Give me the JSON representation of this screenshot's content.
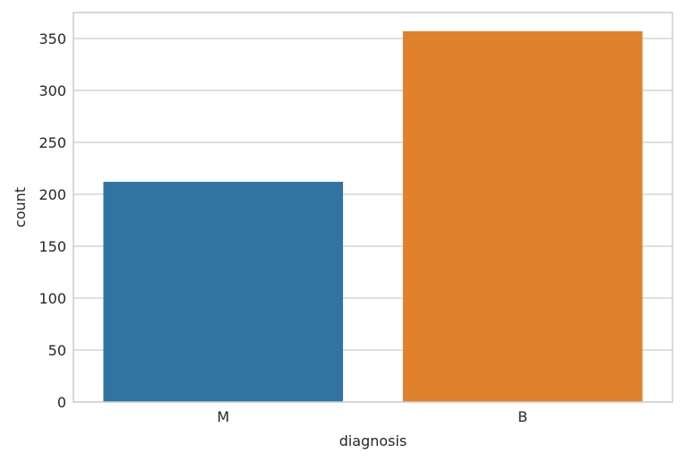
{
  "chart_data": {
    "type": "bar",
    "categories": [
      "M",
      "B"
    ],
    "values": [
      212,
      357
    ],
    "colors": [
      "#3274a1",
      "#e1812c"
    ],
    "xlabel": "diagnosis",
    "ylabel": "count",
    "ylim": [
      0,
      375
    ],
    "yticks": [
      0,
      50,
      100,
      150,
      200,
      250,
      300,
      350
    ],
    "grid": "y-axis on",
    "frame_color": "#cccccc",
    "grid_color": "#cccccc",
    "text_color": "#262626"
  }
}
